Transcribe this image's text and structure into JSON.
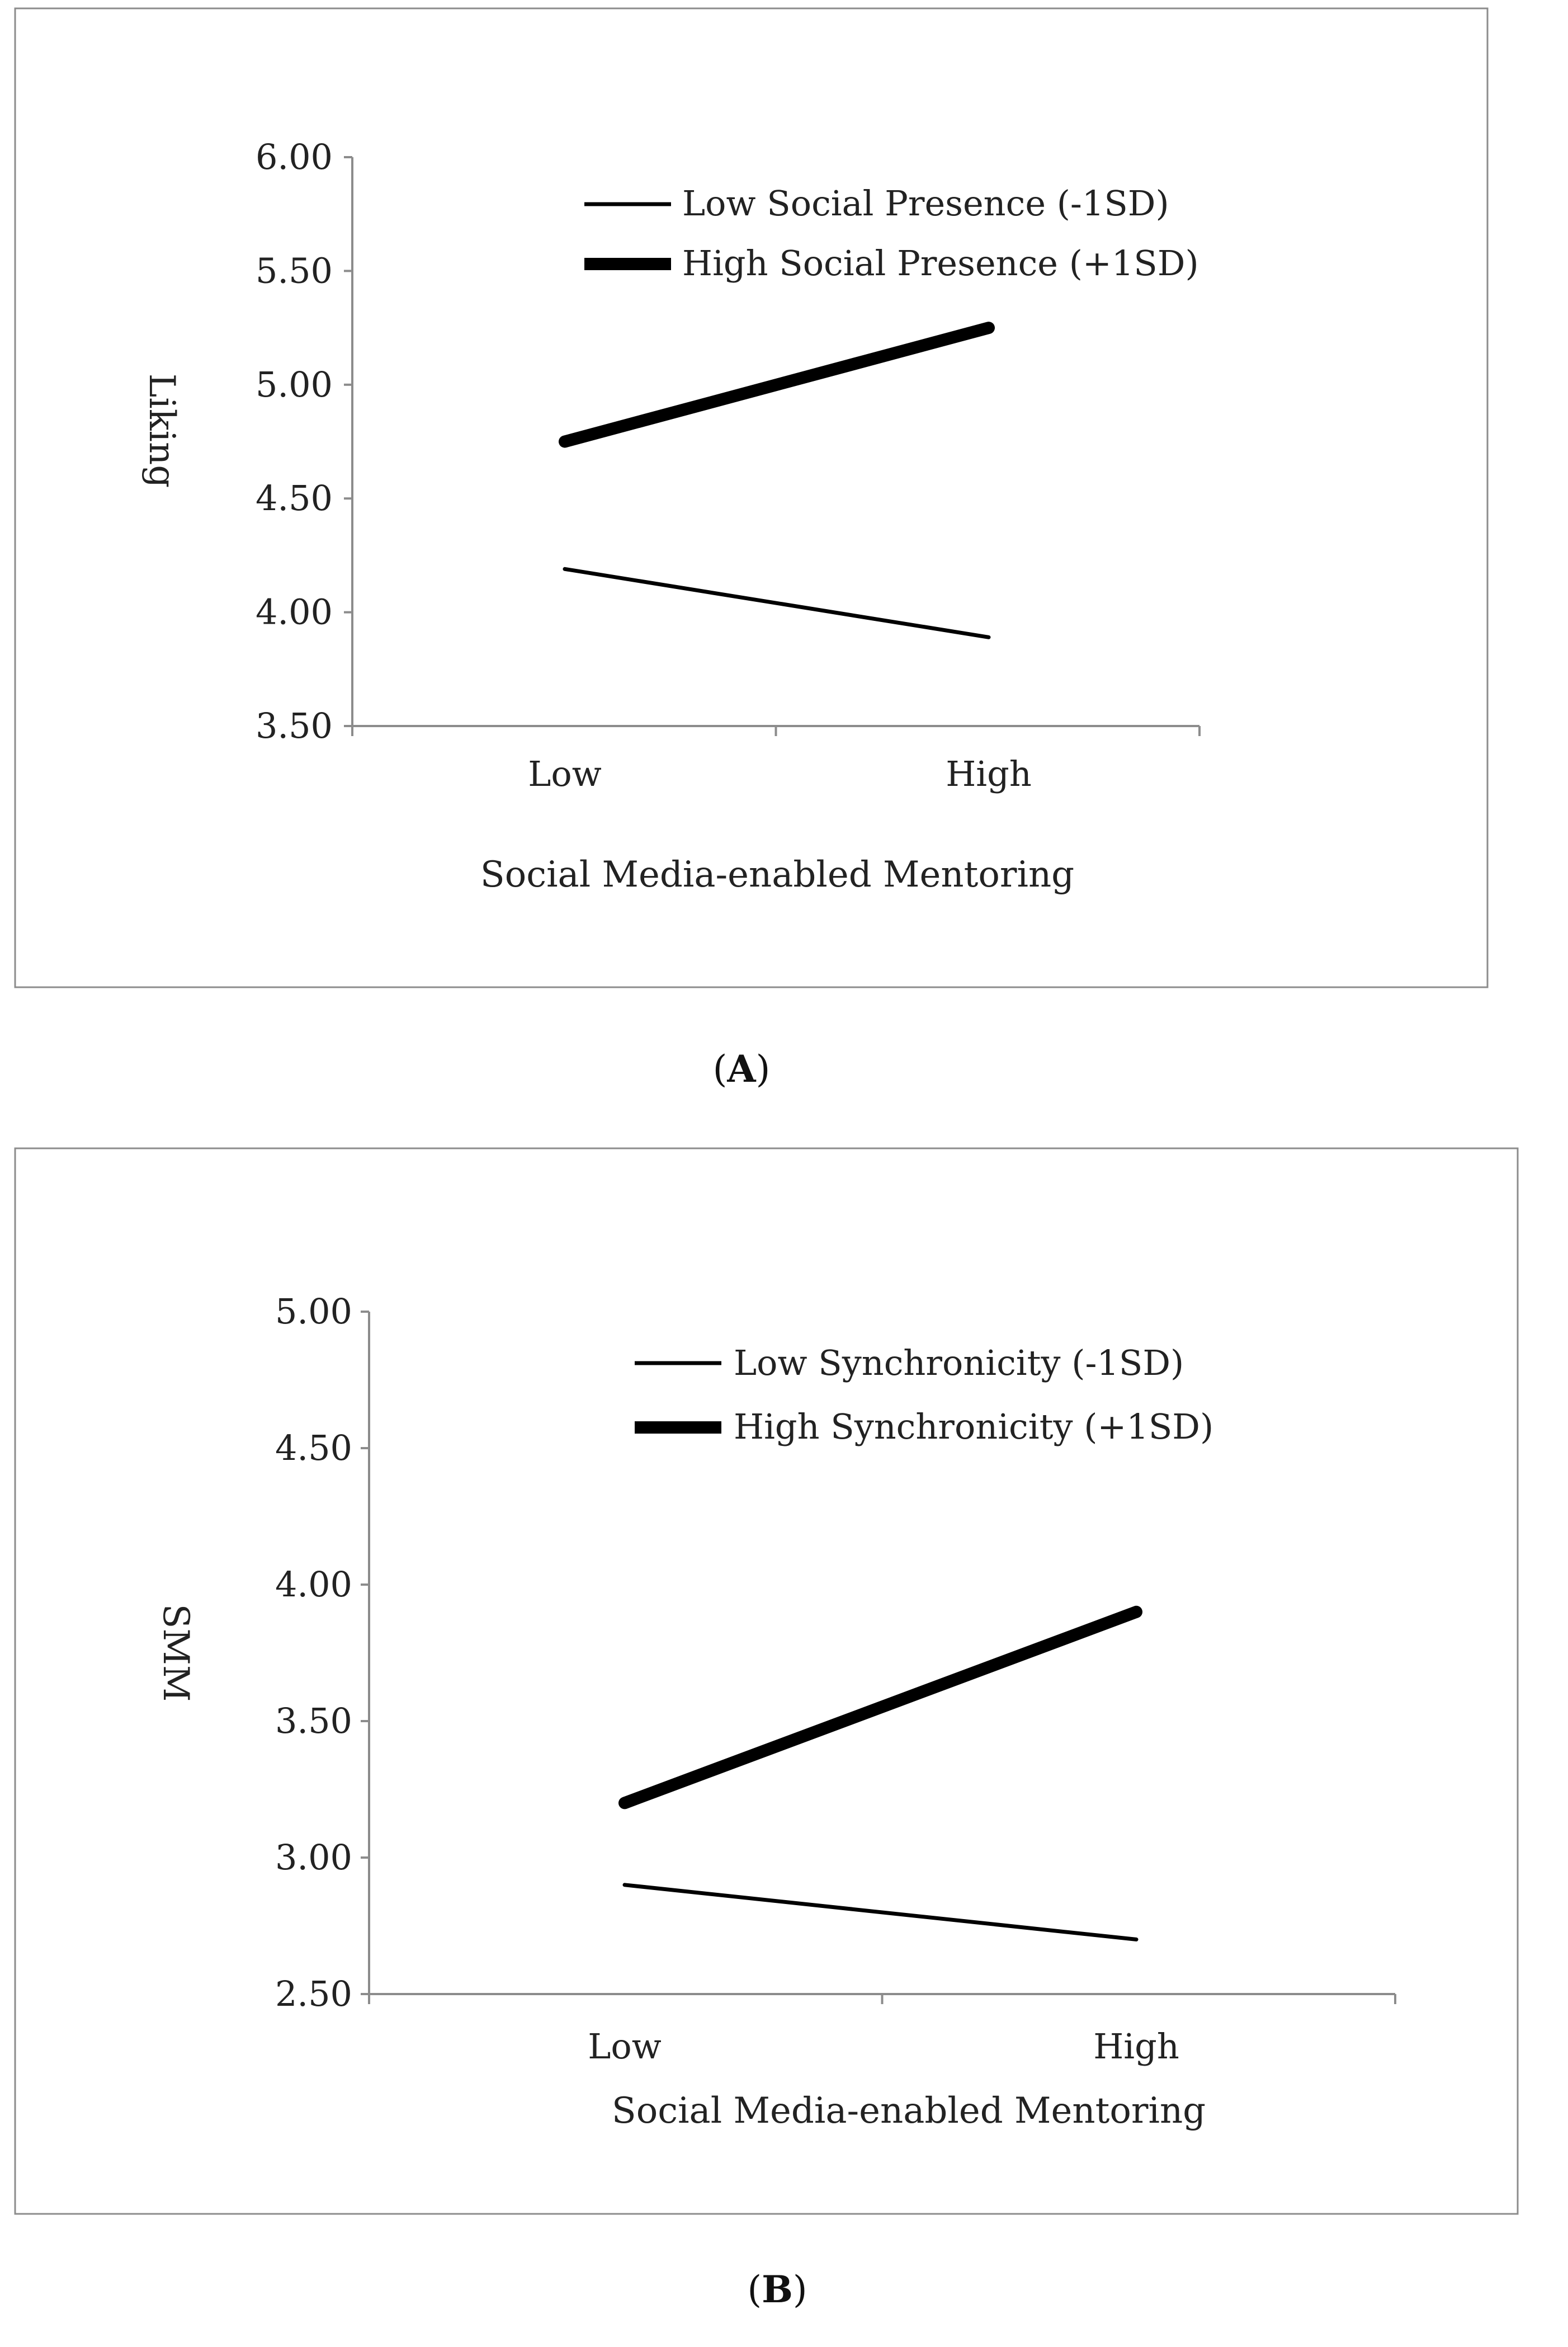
{
  "chart_data": [
    {
      "type": "line",
      "panel": "A",
      "caption": {
        "open": "(",
        "letter": "A",
        "close": ")"
      },
      "title": "",
      "xlabel": "Social Media-enabled Mentoring",
      "ylabel": "Liking",
      "categories": [
        "Low",
        "High"
      ],
      "yticks": [
        "3.50",
        "4.00",
        "4.50",
        "5.00",
        "5.50",
        "6.00"
      ],
      "ylim": [
        3.5,
        6.0
      ],
      "grid": false,
      "legend_position": "top-center",
      "series": [
        {
          "name": "Low Social Presence (-1SD)",
          "style": "thin",
          "color": "#000000",
          "values": [
            4.19,
            3.89
          ]
        },
        {
          "name": "High Social Presence (+1SD)",
          "style": "thick",
          "color": "#000000",
          "values": [
            4.75,
            5.25
          ]
        }
      ]
    },
    {
      "type": "line",
      "panel": "B",
      "caption": {
        "open": "(",
        "letter": "B",
        "close": ")"
      },
      "title": "",
      "xlabel": "Social Media-enabled Mentoring",
      "ylabel": "SMM",
      "categories": [
        "Low",
        "High"
      ],
      "yticks": [
        "2.50",
        "3.00",
        "3.50",
        "4.00",
        "4.50",
        "5.00"
      ],
      "ylim": [
        2.5,
        5.0
      ],
      "grid": false,
      "legend_position": "top-center",
      "series": [
        {
          "name": "Low Synchronicity (-1SD)",
          "style": "thin",
          "color": "#000000",
          "values": [
            2.9,
            2.7
          ]
        },
        {
          "name": "High Synchronicity (+1SD)",
          "style": "thick",
          "color": "#000000",
          "values": [
            3.2,
            3.9
          ]
        }
      ]
    }
  ]
}
